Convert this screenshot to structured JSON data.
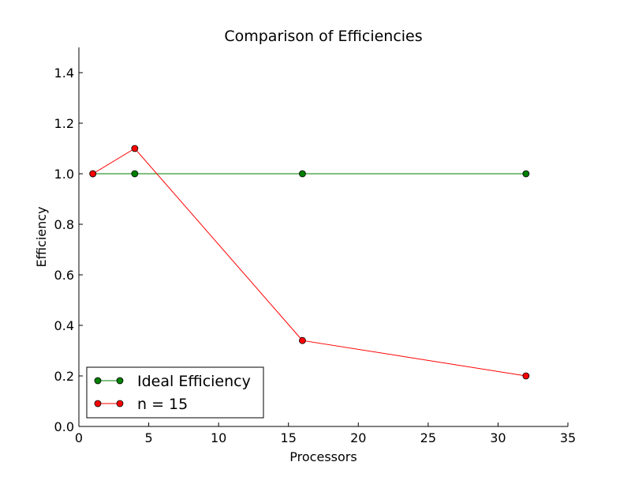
{
  "chart_data": {
    "type": "line",
    "title": "Comparison of Efficiencies",
    "xlabel": "Processors",
    "ylabel": "Efficiency",
    "xlim": [
      0,
      35
    ],
    "ylim": [
      0.0,
      1.5
    ],
    "xticks": [
      0,
      5,
      10,
      15,
      20,
      25,
      30,
      35
    ],
    "yticks": [
      0.0,
      0.2,
      0.4,
      0.6,
      0.8,
      1.0,
      1.2,
      1.4
    ],
    "xtick_labels": [
      "0",
      "5",
      "10",
      "15",
      "20",
      "25",
      "30",
      "35"
    ],
    "ytick_labels": [
      "0.0",
      "0.2",
      "0.4",
      "0.6",
      "0.8",
      "1.0",
      "1.2",
      "1.4"
    ],
    "grid": false,
    "legend_position": "lower-left",
    "series": [
      {
        "name": "Ideal Efficiency",
        "color": "#008000",
        "marker": "circle",
        "x": [
          1,
          4,
          16,
          32
        ],
        "y": [
          1.0,
          1.0,
          1.0,
          1.0
        ]
      },
      {
        "name": "n = 15",
        "color": "#ff0000",
        "marker": "circle",
        "x": [
          1,
          4,
          16,
          32
        ],
        "y": [
          1.0,
          1.1,
          0.34,
          0.2
        ]
      }
    ]
  }
}
